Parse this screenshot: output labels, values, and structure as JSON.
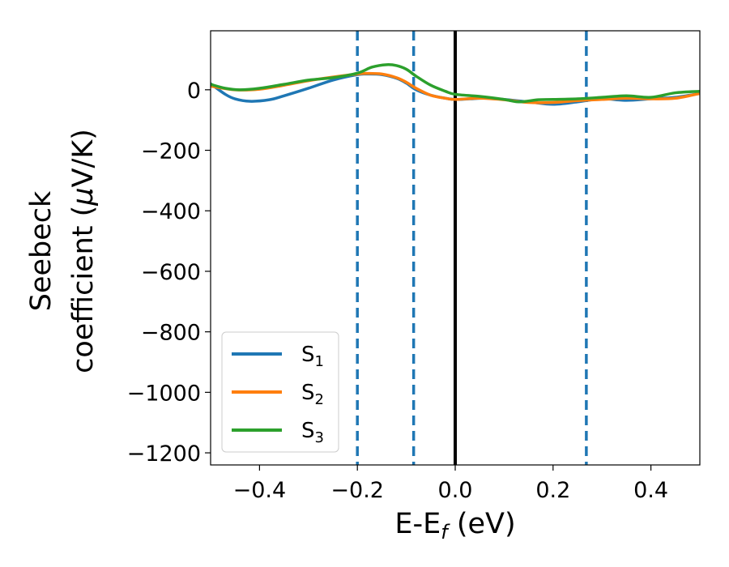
{
  "chart_data": {
    "type": "line",
    "xlabel": {
      "main": "E-E",
      "sub": "f",
      "unit": " (eV)"
    },
    "ylabel": {
      "line1": "Seebeck",
      "line2_prefix": "coefficient  (",
      "line2_mu": "μ",
      "line2_suffix": "V/K)"
    },
    "xlim": [
      -0.5,
      0.5
    ],
    "ylim": [
      -1240,
      195
    ],
    "xticks": [
      -0.4,
      -0.2,
      0.0,
      0.2,
      0.4
    ],
    "xtick_labels": [
      "−0.4",
      "−0.2",
      "0.0",
      "0.2",
      "0.4"
    ],
    "yticks": [
      0,
      -200,
      -400,
      -600,
      -800,
      -1000,
      -1200
    ],
    "ytick_labels": [
      "0",
      "−200",
      "−400",
      "−600",
      "−800",
      "−1000",
      "−1200"
    ],
    "grid": false,
    "legend_position": "lower-left",
    "vlines": [
      {
        "x": -0.2,
        "style": "dashed",
        "color": "#1f77b4"
      },
      {
        "x": -0.085,
        "style": "dashed",
        "color": "#1f77b4"
      },
      {
        "x": 0.0,
        "style": "solid",
        "color": "#000000"
      },
      {
        "x": 0.268,
        "style": "dashed",
        "color": "#1f77b4"
      }
    ],
    "series": [
      {
        "name": "S",
        "sub": "1",
        "color": "#1f77b4",
        "x": [
          -0.5,
          -0.47,
          -0.45,
          -0.42,
          -0.38,
          -0.35,
          -0.3,
          -0.25,
          -0.2,
          -0.18,
          -0.15,
          -0.12,
          -0.1,
          -0.08,
          -0.05,
          -0.02,
          0.0,
          0.03,
          0.06,
          0.1,
          0.15,
          0.2,
          0.25,
          0.3,
          0.35,
          0.4,
          0.45,
          0.5
        ],
        "y": [
          20,
          -15,
          -30,
          -38,
          -33,
          -20,
          5,
          32,
          50,
          52,
          50,
          38,
          22,
          0,
          -18,
          -28,
          -32,
          -30,
          -28,
          -32,
          -40,
          -48,
          -40,
          -30,
          -35,
          -30,
          -25,
          -12
        ]
      },
      {
        "name": "S",
        "sub": "2",
        "color": "#ff7f0e",
        "x": [
          -0.5,
          -0.45,
          -0.4,
          -0.35,
          -0.3,
          -0.25,
          -0.2,
          -0.18,
          -0.15,
          -0.12,
          -0.1,
          -0.08,
          -0.05,
          -0.02,
          0.0,
          0.05,
          0.1,
          0.15,
          0.2,
          0.25,
          0.3,
          0.35,
          0.4,
          0.45,
          0.5
        ],
        "y": [
          12,
          0,
          2,
          15,
          30,
          42,
          52,
          54,
          52,
          40,
          25,
          5,
          -18,
          -28,
          -32,
          -28,
          -33,
          -42,
          -42,
          -36,
          -32,
          -28,
          -30,
          -28,
          -12
        ]
      },
      {
        "name": "S",
        "sub": "3",
        "color": "#2ca02c",
        "x": [
          -0.5,
          -0.47,
          -0.44,
          -0.4,
          -0.35,
          -0.3,
          -0.25,
          -0.2,
          -0.17,
          -0.14,
          -0.12,
          -0.1,
          -0.08,
          -0.05,
          -0.02,
          0.0,
          0.05,
          0.1,
          0.13,
          0.17,
          0.2,
          0.25,
          0.3,
          0.35,
          0.4,
          0.45,
          0.5
        ],
        "y": [
          18,
          5,
          0,
          5,
          18,
          32,
          40,
          55,
          75,
          83,
          80,
          68,
          45,
          15,
          -5,
          -15,
          -22,
          -32,
          -40,
          -33,
          -32,
          -30,
          -25,
          -20,
          -25,
          -10,
          -5
        ]
      }
    ]
  }
}
